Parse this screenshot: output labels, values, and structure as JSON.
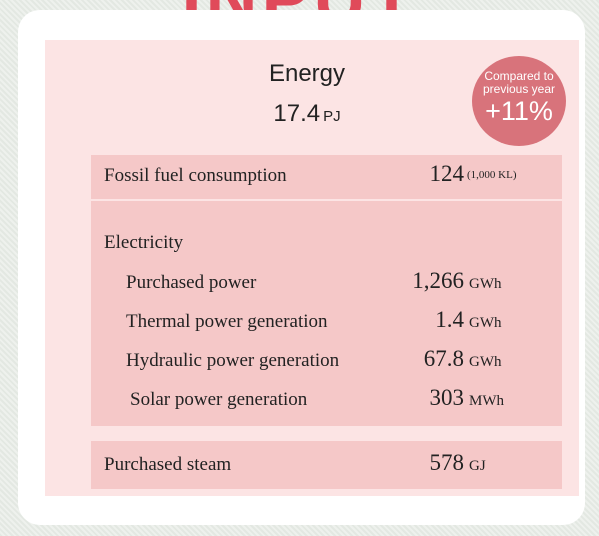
{
  "header": {
    "title": "INPUT"
  },
  "energy": {
    "label": "Energy",
    "value": "17.4",
    "unit": "PJ"
  },
  "badge": {
    "line1": "Compared to",
    "line2": "previous year",
    "value": "+11%"
  },
  "fossil": {
    "label": "Fossil fuel consumption",
    "value": "124",
    "unit": "(1,000 KL)"
  },
  "electricity": {
    "label": "Electricity",
    "items": [
      {
        "label": "Purchased power",
        "value": "1,266",
        "unit": "GWh"
      },
      {
        "label": "Thermal power generation",
        "value": "1.4",
        "unit": "GWh"
      },
      {
        "label": "Hydraulic power generation",
        "value": "67.8",
        "unit": "GWh"
      },
      {
        "label": "Solar power generation",
        "value": "303",
        "unit": "MWh"
      }
    ]
  },
  "steam": {
    "label": "Purchased steam",
    "value": "578",
    "unit": "GJ"
  }
}
